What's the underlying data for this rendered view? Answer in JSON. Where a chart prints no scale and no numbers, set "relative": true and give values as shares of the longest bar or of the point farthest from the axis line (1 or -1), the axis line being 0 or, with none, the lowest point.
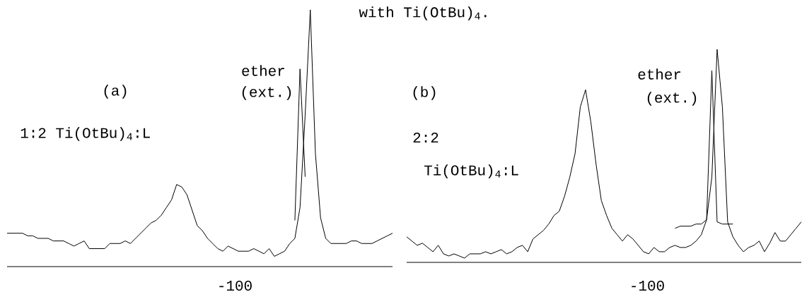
{
  "chart_data": [
    {
      "type": "line",
      "title": "with Ti(OtBu)$_{4}$.",
      "relative": true,
      "categories": [
        null,
        null,
        null,
        null,
        null,
        null,
        null,
        null,
        null,
        null,
        null,
        null,
        null,
        null,
        null,
        null,
        null,
        null,
        null,
        null,
        null,
        null,
        null,
        null,
        null,
        null,
        null,
        null,
        null,
        null,
        null,
        null,
        null,
        null,
        null,
        null,
        null,
        null,
        null,
        null,
        null,
        null,
        null,
        null,
        null,
        null,
        null,
        null,
        null,
        null,
        null,
        null,
        null,
        null,
        null,
        null,
        null,
        null,
        null,
        null,
        null,
        null,
        null,
        null,
        null,
        null,
        null,
        null,
        null,
        null,
        null,
        null,
        null,
        null,
        null,
        null
      ],
      "series": [
        {
          "color": "#000000",
          "values": [
            0.13,
            0.13,
            0.13,
            0.13,
            0.12,
            0.12,
            0.11,
            0.11,
            0.11,
            0.1,
            0.1,
            0.1,
            0.09,
            0.08,
            0.09,
            0.1,
            0.07,
            0.07,
            0.07,
            0.07,
            0.09,
            0.09,
            0.09,
            0.1,
            0.09,
            0.11,
            0.13,
            0.15,
            0.17,
            0.18,
            0.2,
            0.23,
            0.26,
            0.32,
            0.31,
            0.28,
            0.22,
            0.16,
            0.14,
            0.11,
            0.09,
            0.07,
            0.06,
            0.08,
            0.07,
            0.06,
            0.06,
            0.06,
            0.07,
            0.06,
            0.05,
            0.07,
            0.04,
            0.05,
            0.06,
            0.09,
            0.11,
            0.23,
            0.59,
            1,
            0.44,
            0.19,
            0.11,
            0.09,
            0.09,
            0.09,
            0.09,
            0.1,
            0.1,
            0.09,
            0.09,
            0.09,
            0.1,
            0.11,
            0.12,
            0.13
          ]
        },
        {
          "color": "#000000",
          "values": [
            null,
            null,
            null,
            null,
            null,
            null,
            null,
            null,
            null,
            null,
            null,
            null,
            null,
            null,
            null,
            null,
            null,
            null,
            null,
            null,
            null,
            null,
            null,
            null,
            null,
            null,
            null,
            null,
            null,
            null,
            null,
            null,
            null,
            null,
            null,
            null,
            null,
            null,
            null,
            null,
            null,
            null,
            null,
            null,
            null,
            null,
            null,
            null,
            null,
            null,
            null,
            null,
            null,
            null,
            null,
            null,
            0.18,
            0.77,
            0.35,
            null,
            null,
            null,
            null,
            null,
            null,
            null,
            null,
            null,
            null,
            null,
            null,
            null,
            null,
            null,
            null,
            null
          ]
        }
      ],
      "annotations": [
        "(a)",
        "1:2  Ti(OtBu)$_{4}$:L",
        "ether",
        "(ext.)",
        "-100"
      ]
    },
    {
      "type": "line",
      "relative": true,
      "categories": [
        null,
        null,
        null,
        null,
        null,
        null,
        null,
        null,
        null,
        null,
        null,
        null,
        null,
        null,
        null,
        null,
        null,
        null,
        null,
        null,
        null,
        null,
        null,
        null,
        null,
        null,
        null,
        null,
        null,
        null,
        null,
        null,
        null,
        null,
        null,
        null,
        null,
        null,
        null,
        null,
        null,
        null,
        null,
        null,
        null,
        null,
        null,
        null,
        null,
        null,
        null,
        null,
        null,
        null,
        null,
        null,
        null,
        null,
        null,
        null,
        null,
        null,
        null,
        null,
        null,
        null,
        null,
        null,
        null,
        null,
        null,
        null,
        null,
        null,
        null,
        null
      ],
      "series": [
        {
          "color": "#000000",
          "values": [
            0.12,
            0.1,
            0.08,
            0.09,
            0.07,
            0.05,
            0.08,
            0.04,
            0.03,
            0.04,
            0.03,
            0.02,
            0.04,
            0.04,
            0.04,
            0.05,
            0.04,
            0.05,
            0.06,
            0.04,
            0.05,
            0.07,
            0.08,
            0.05,
            0.11,
            0.13,
            0.15,
            0.18,
            0.22,
            0.24,
            0.31,
            0.4,
            0.51,
            0.73,
            0.81,
            0.66,
            0.46,
            0.29,
            0.22,
            0.16,
            0.13,
            0.1,
            0.13,
            0.11,
            0.08,
            0.05,
            0.04,
            0.07,
            0.05,
            0.05,
            0.07,
            0.08,
            0.07,
            0.07,
            0.08,
            0.1,
            0.13,
            0.2,
            0.4,
            1,
            0.73,
            0.19,
            0.12,
            0.08,
            0.05,
            0.07,
            0.08,
            0.1,
            0.05,
            0.09,
            0.14,
            0.1,
            0.1,
            0.13,
            0.16,
            0.19
          ]
        },
        {
          "color": "#000000",
          "values": [
            null,
            null,
            null,
            null,
            null,
            null,
            null,
            null,
            null,
            null,
            null,
            null,
            null,
            null,
            null,
            null,
            null,
            null,
            null,
            null,
            null,
            null,
            null,
            null,
            null,
            null,
            null,
            null,
            null,
            null,
            null,
            null,
            null,
            null,
            null,
            null,
            null,
            null,
            null,
            null,
            null,
            null,
            null,
            null,
            null,
            null,
            null,
            null,
            null,
            null,
            null,
            0.16,
            0.17,
            0.17,
            0.17,
            0.18,
            0.18,
            0.2,
            0.9,
            0.19,
            0.18,
            0.18,
            0.18,
            null,
            null,
            null,
            null,
            null,
            null,
            null,
            null,
            null,
            null,
            null,
            null,
            null
          ]
        }
      ],
      "annotations": [
        "(b)",
        "2:2",
        "Ti(OtBu)$_{4}$:L",
        "ether",
        "(ext.)",
        "-100"
      ]
    }
  ]
}
